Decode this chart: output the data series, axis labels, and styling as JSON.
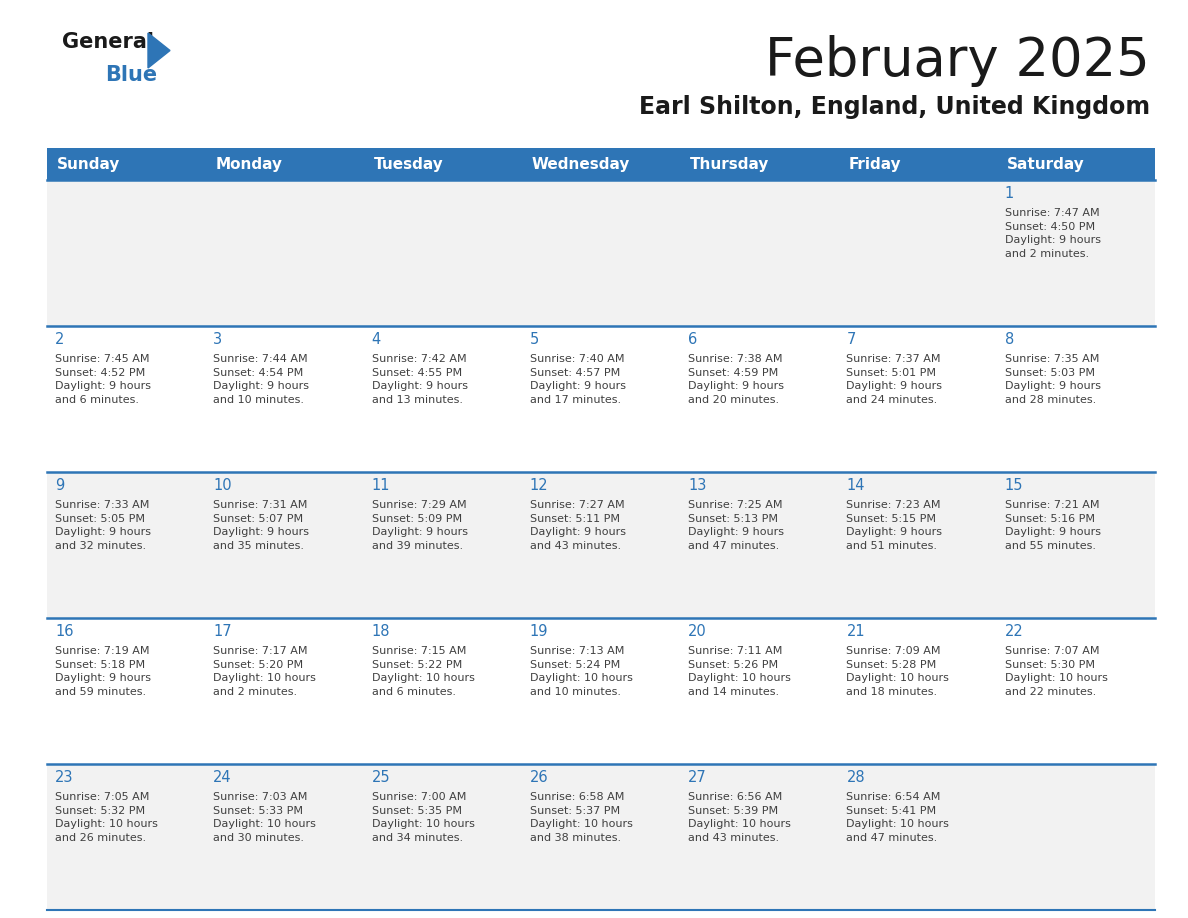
{
  "title": "February 2025",
  "subtitle": "Earl Shilton, England, United Kingdom",
  "days_of_week": [
    "Sunday",
    "Monday",
    "Tuesday",
    "Wednesday",
    "Thursday",
    "Friday",
    "Saturday"
  ],
  "header_bg": "#2E75B6",
  "header_text": "#FFFFFF",
  "row_bg_odd": "#F2F2F2",
  "row_bg_even": "#FFFFFF",
  "day_number_color": "#2E75B6",
  "text_color": "#404040",
  "line_color": "#2E75B6",
  "calendar_data": [
    [
      {
        "day": null,
        "info": null
      },
      {
        "day": null,
        "info": null
      },
      {
        "day": null,
        "info": null
      },
      {
        "day": null,
        "info": null
      },
      {
        "day": null,
        "info": null
      },
      {
        "day": null,
        "info": null
      },
      {
        "day": 1,
        "info": "Sunrise: 7:47 AM\nSunset: 4:50 PM\nDaylight: 9 hours\nand 2 minutes."
      }
    ],
    [
      {
        "day": 2,
        "info": "Sunrise: 7:45 AM\nSunset: 4:52 PM\nDaylight: 9 hours\nand 6 minutes."
      },
      {
        "day": 3,
        "info": "Sunrise: 7:44 AM\nSunset: 4:54 PM\nDaylight: 9 hours\nand 10 minutes."
      },
      {
        "day": 4,
        "info": "Sunrise: 7:42 AM\nSunset: 4:55 PM\nDaylight: 9 hours\nand 13 minutes."
      },
      {
        "day": 5,
        "info": "Sunrise: 7:40 AM\nSunset: 4:57 PM\nDaylight: 9 hours\nand 17 minutes."
      },
      {
        "day": 6,
        "info": "Sunrise: 7:38 AM\nSunset: 4:59 PM\nDaylight: 9 hours\nand 20 minutes."
      },
      {
        "day": 7,
        "info": "Sunrise: 7:37 AM\nSunset: 5:01 PM\nDaylight: 9 hours\nand 24 minutes."
      },
      {
        "day": 8,
        "info": "Sunrise: 7:35 AM\nSunset: 5:03 PM\nDaylight: 9 hours\nand 28 minutes."
      }
    ],
    [
      {
        "day": 9,
        "info": "Sunrise: 7:33 AM\nSunset: 5:05 PM\nDaylight: 9 hours\nand 32 minutes."
      },
      {
        "day": 10,
        "info": "Sunrise: 7:31 AM\nSunset: 5:07 PM\nDaylight: 9 hours\nand 35 minutes."
      },
      {
        "day": 11,
        "info": "Sunrise: 7:29 AM\nSunset: 5:09 PM\nDaylight: 9 hours\nand 39 minutes."
      },
      {
        "day": 12,
        "info": "Sunrise: 7:27 AM\nSunset: 5:11 PM\nDaylight: 9 hours\nand 43 minutes."
      },
      {
        "day": 13,
        "info": "Sunrise: 7:25 AM\nSunset: 5:13 PM\nDaylight: 9 hours\nand 47 minutes."
      },
      {
        "day": 14,
        "info": "Sunrise: 7:23 AM\nSunset: 5:15 PM\nDaylight: 9 hours\nand 51 minutes."
      },
      {
        "day": 15,
        "info": "Sunrise: 7:21 AM\nSunset: 5:16 PM\nDaylight: 9 hours\nand 55 minutes."
      }
    ],
    [
      {
        "day": 16,
        "info": "Sunrise: 7:19 AM\nSunset: 5:18 PM\nDaylight: 9 hours\nand 59 minutes."
      },
      {
        "day": 17,
        "info": "Sunrise: 7:17 AM\nSunset: 5:20 PM\nDaylight: 10 hours\nand 2 minutes."
      },
      {
        "day": 18,
        "info": "Sunrise: 7:15 AM\nSunset: 5:22 PM\nDaylight: 10 hours\nand 6 minutes."
      },
      {
        "day": 19,
        "info": "Sunrise: 7:13 AM\nSunset: 5:24 PM\nDaylight: 10 hours\nand 10 minutes."
      },
      {
        "day": 20,
        "info": "Sunrise: 7:11 AM\nSunset: 5:26 PM\nDaylight: 10 hours\nand 14 minutes."
      },
      {
        "day": 21,
        "info": "Sunrise: 7:09 AM\nSunset: 5:28 PM\nDaylight: 10 hours\nand 18 minutes."
      },
      {
        "day": 22,
        "info": "Sunrise: 7:07 AM\nSunset: 5:30 PM\nDaylight: 10 hours\nand 22 minutes."
      }
    ],
    [
      {
        "day": 23,
        "info": "Sunrise: 7:05 AM\nSunset: 5:32 PM\nDaylight: 10 hours\nand 26 minutes."
      },
      {
        "day": 24,
        "info": "Sunrise: 7:03 AM\nSunset: 5:33 PM\nDaylight: 10 hours\nand 30 minutes."
      },
      {
        "day": 25,
        "info": "Sunrise: 7:00 AM\nSunset: 5:35 PM\nDaylight: 10 hours\nand 34 minutes."
      },
      {
        "day": 26,
        "info": "Sunrise: 6:58 AM\nSunset: 5:37 PM\nDaylight: 10 hours\nand 38 minutes."
      },
      {
        "day": 27,
        "info": "Sunrise: 6:56 AM\nSunset: 5:39 PM\nDaylight: 10 hours\nand 43 minutes."
      },
      {
        "day": 28,
        "info": "Sunrise: 6:54 AM\nSunset: 5:41 PM\nDaylight: 10 hours\nand 47 minutes."
      },
      {
        "day": null,
        "info": null
      }
    ]
  ]
}
